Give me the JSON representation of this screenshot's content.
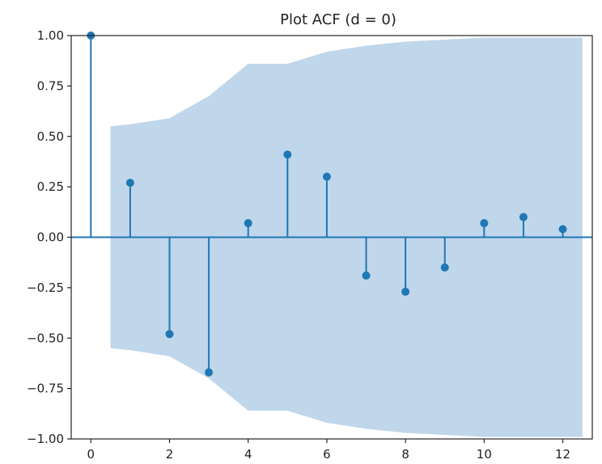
{
  "chart_data": {
    "type": "scatter",
    "title": "Plot ACF (d = 0)",
    "xlabel": "",
    "ylabel": "",
    "xlim": [
      -0.5,
      12.75
    ],
    "ylim": [
      -1.0,
      1.0
    ],
    "x_ticks": [
      0,
      2,
      4,
      6,
      8,
      10,
      12
    ],
    "y_ticks": [
      -1.0,
      -0.75,
      -0.5,
      -0.25,
      0.0,
      0.25,
      0.5,
      0.75,
      1.0
    ],
    "x_tick_labels": [
      "0",
      "2",
      "4",
      "6",
      "8",
      "10",
      "12"
    ],
    "y_tick_labels": [
      "−1.00",
      "−0.75",
      "−0.50",
      "−0.25",
      "0.00",
      "0.25",
      "0.50",
      "0.75",
      "1.00"
    ],
    "grid": false,
    "lags": [
      0,
      1,
      2,
      3,
      4,
      5,
      6,
      7,
      8,
      9,
      10,
      11,
      12
    ],
    "acf": [
      1.0,
      0.27,
      -0.48,
      -0.67,
      0.07,
      0.41,
      0.3,
      -0.19,
      -0.27,
      -0.15,
      0.07,
      0.1,
      0.04
    ],
    "confidence_band": {
      "x": [
        0.5,
        1,
        2,
        3,
        4,
        5,
        6,
        7,
        8,
        9,
        10,
        11,
        12,
        12.5
      ],
      "upper": [
        0.55,
        0.56,
        0.59,
        0.7,
        0.86,
        0.86,
        0.92,
        0.95,
        0.97,
        0.98,
        0.99,
        0.99,
        0.99,
        0.99
      ],
      "lower": [
        -0.55,
        -0.56,
        -0.59,
        -0.7,
        -0.86,
        -0.86,
        -0.92,
        -0.95,
        -0.97,
        -0.98,
        -0.99,
        -0.99,
        -0.99,
        -0.99
      ]
    },
    "colors": {
      "stem": "#1f77b4",
      "marker": "#1f77b4",
      "band": "#c0d6ea",
      "axis": "#222222",
      "zero_line": "#1f77b4"
    }
  }
}
